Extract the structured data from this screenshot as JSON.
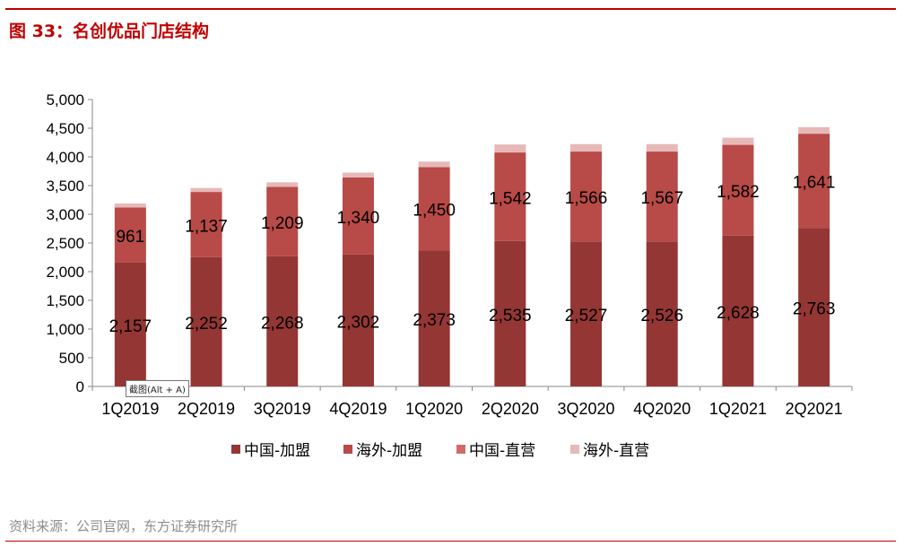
{
  "title": "图 33：名创优品门店结构",
  "source": "资料来源：公司官网，东方证券研究所",
  "tooltip": "截图(Alt + A)",
  "chart_data": {
    "type": "bar",
    "stacked": true,
    "title": "",
    "xlabel": "",
    "ylabel": "",
    "ylim": [
      0,
      5000
    ],
    "yticks": [
      0,
      500,
      1000,
      1500,
      2000,
      2500,
      3000,
      3500,
      4000,
      4500,
      5000
    ],
    "ytick_labels": [
      "0",
      "500",
      "1,000",
      "1,500",
      "2,000",
      "2,500",
      "3,000",
      "3,500",
      "4,000",
      "4,500",
      "5,000"
    ],
    "grid": false,
    "legend_position": "bottom",
    "categories": [
      "1Q2019",
      "2Q2019",
      "3Q2019",
      "4Q2019",
      "1Q2020",
      "2Q2020",
      "3Q2020",
      "4Q2020",
      "1Q2021",
      "2Q2021"
    ],
    "series": [
      {
        "name": "中国-加盟",
        "color": "#943634",
        "labeled": true,
        "values": [
          2157,
          2252,
          2268,
          2302,
          2373,
          2535,
          2527,
          2526,
          2628,
          2763
        ]
      },
      {
        "name": "海外-加盟",
        "color": "#b84a47",
        "labeled": true,
        "values": [
          961,
          1137,
          1209,
          1340,
          1450,
          1542,
          1566,
          1567,
          1582,
          1641
        ]
      },
      {
        "name": "中国-直营",
        "color": "#d06b67",
        "labeled": false,
        "values": [
          0,
          0,
          0,
          0,
          0,
          0,
          0,
          0,
          0,
          0
        ]
      },
      {
        "name": "海外-直营",
        "color": "#e6b9b8",
        "labeled": false,
        "values": [
          70,
          70,
          80,
          85,
          95,
          140,
          130,
          130,
          125,
          115
        ]
      }
    ],
    "data_labels": {
      "中国-加盟": [
        "2,157",
        "2,252",
        "2,268",
        "2,302",
        "2,373",
        "2,535",
        "2,527",
        "2,526",
        "2,628",
        "2,763"
      ],
      "海外-加盟": [
        "961",
        "1,137",
        "1,209",
        "1,340",
        "1,450",
        "1,542",
        "1,566",
        "1,567",
        "1,582",
        "1,641"
      ]
    }
  }
}
